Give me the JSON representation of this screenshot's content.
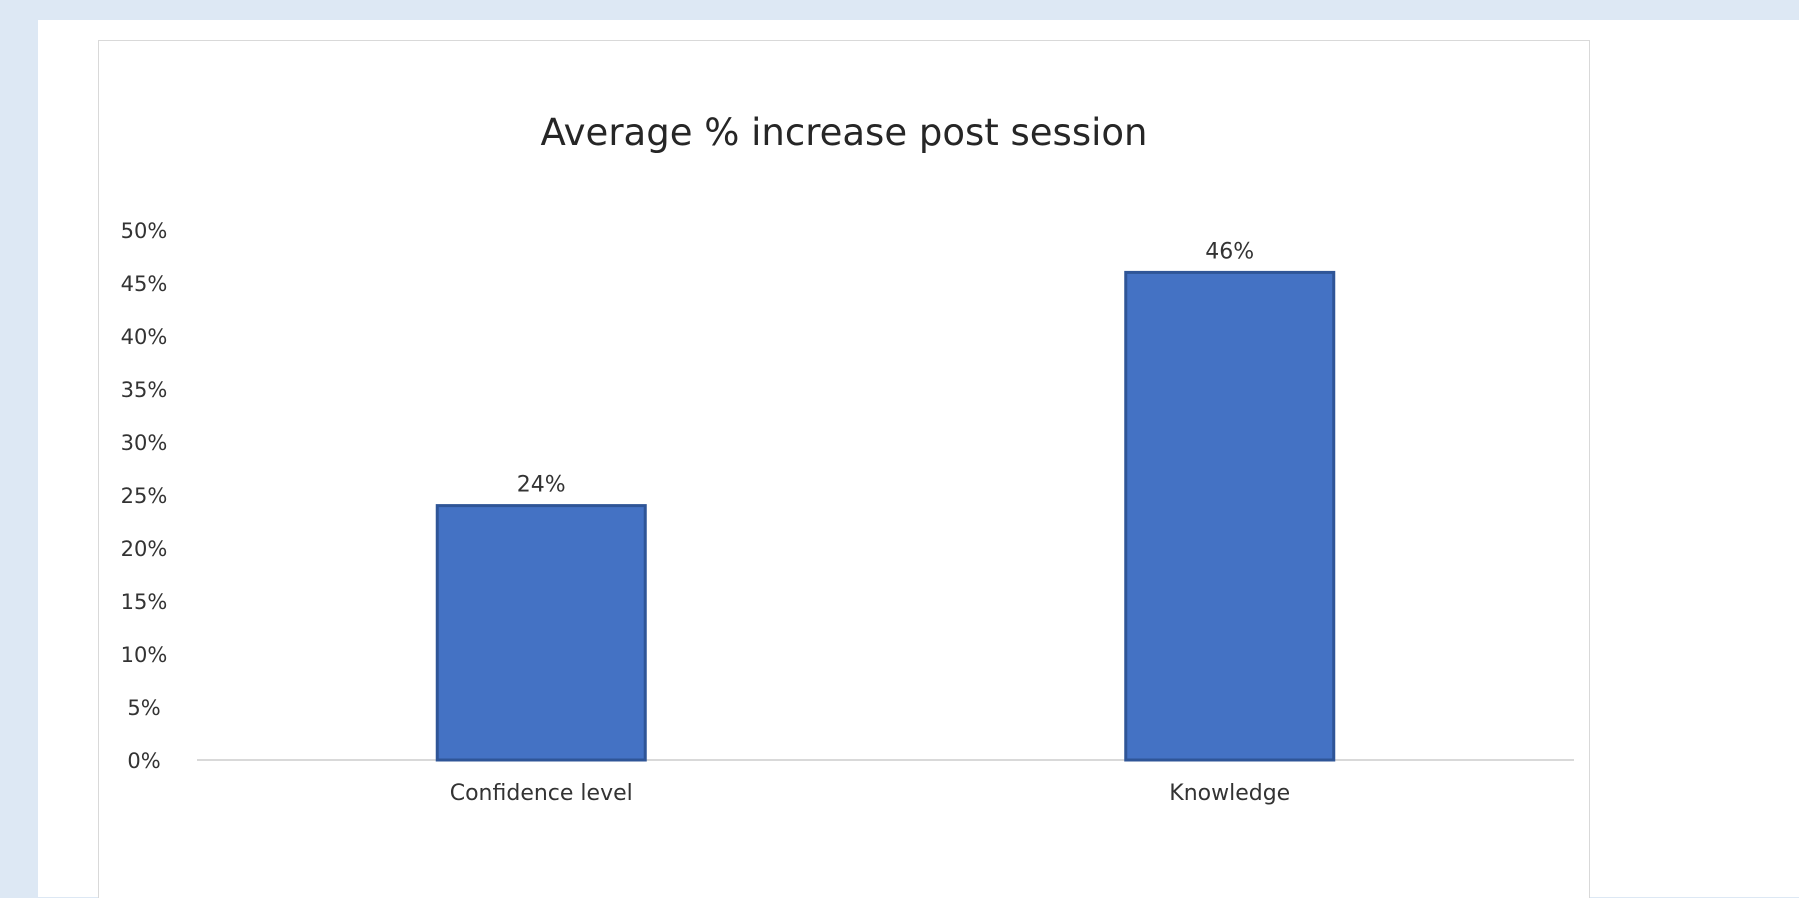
{
  "chart_data": {
    "type": "bar",
    "title": "Average % increase post session",
    "categories": [
      "Confidence level",
      "Knowledge"
    ],
    "values": [
      24,
      46
    ],
    "data_labels": [
      "24%",
      "46%"
    ],
    "xlabel": "",
    "ylabel": "",
    "ylim": [
      0,
      50
    ],
    "y_ticks": [
      0,
      5,
      10,
      15,
      20,
      25,
      30,
      35,
      40,
      45,
      50
    ],
    "y_tick_labels": [
      "0%",
      "5%",
      "10%",
      "15%",
      "20%",
      "25%",
      "30%",
      "35%",
      "40%",
      "45%",
      "50%"
    ],
    "grid": false,
    "legend": false,
    "bar_color": "#4472c4",
    "bar_edge_color": "#2f5597"
  }
}
